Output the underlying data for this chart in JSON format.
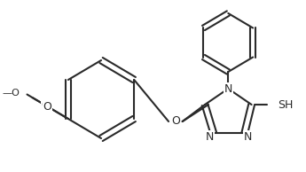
{
  "bg": "#ffffff",
  "lc": "#2a2a2a",
  "lw": 1.5,
  "fs": 9.0,
  "figsize": [
    3.45,
    1.94
  ],
  "dpi": 100,
  "xlim": [
    0,
    345
  ],
  "ylim": [
    0,
    194
  ]
}
